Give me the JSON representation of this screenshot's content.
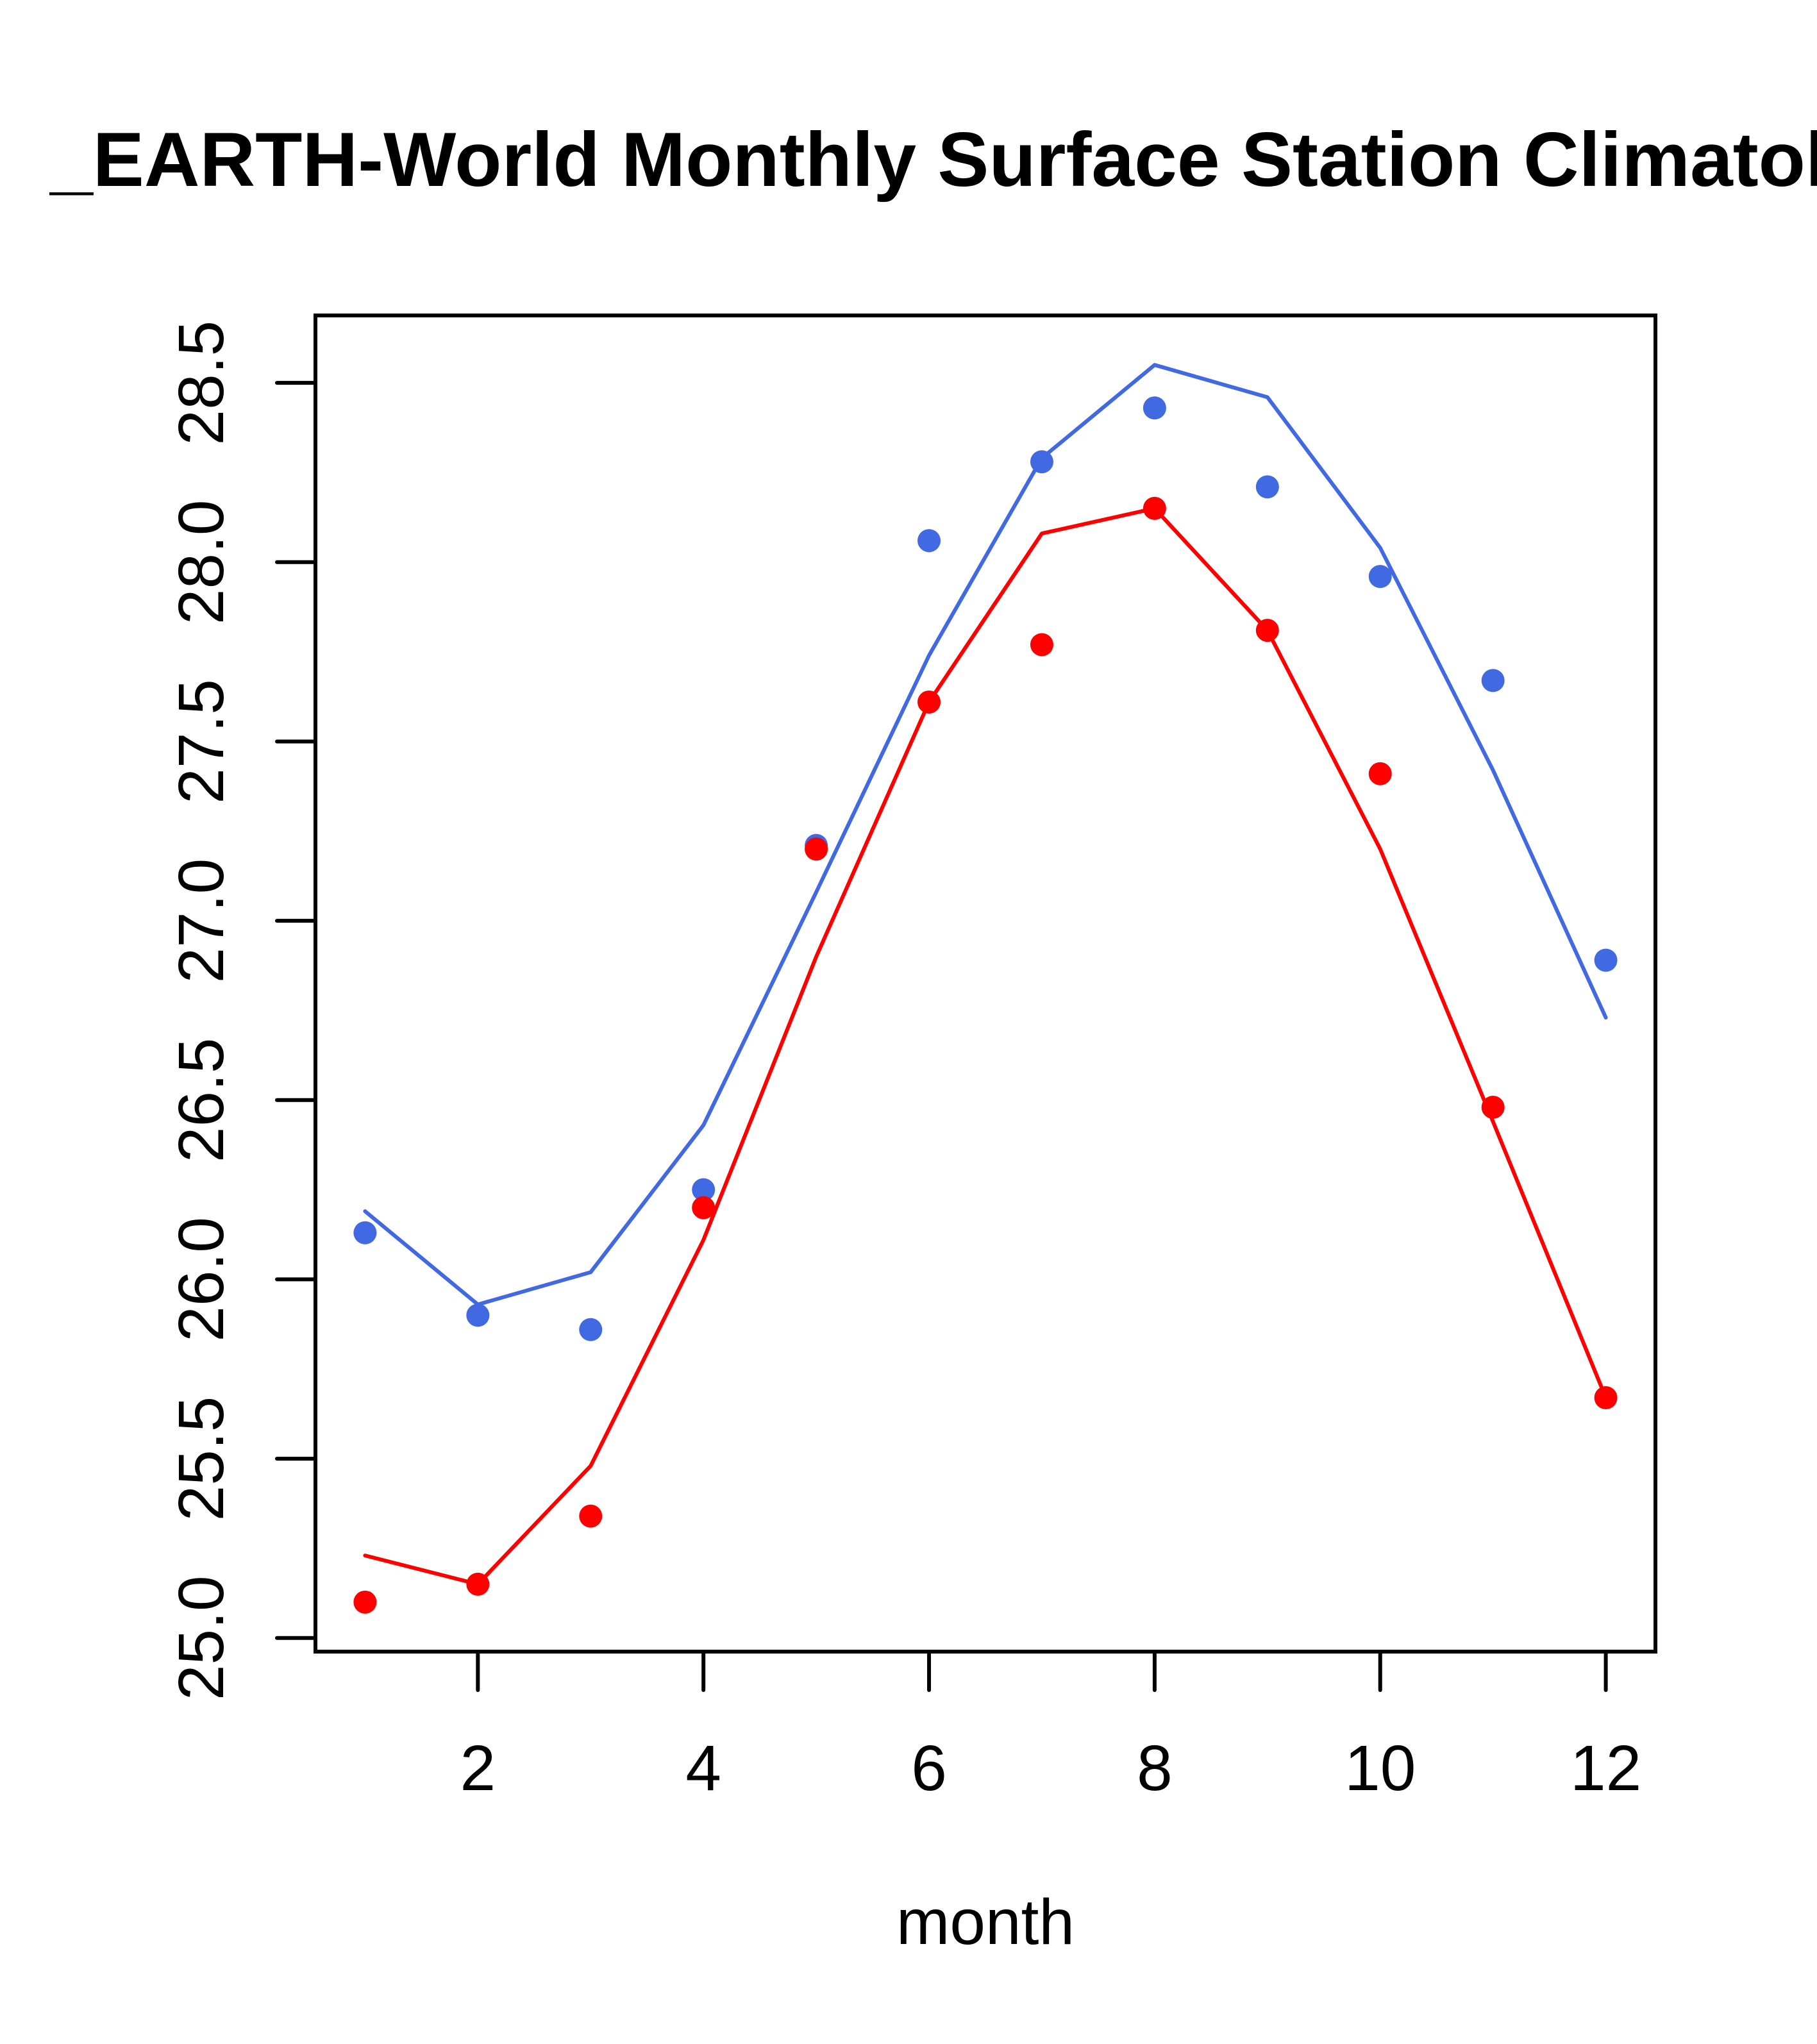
{
  "chart_data": {
    "type": "line",
    "title": "_EARTH-World Monthly Surface Station Climatolog",
    "xlabel": "month",
    "ylabel": "",
    "x": [
      1,
      2,
      3,
      4,
      5,
      6,
      7,
      8,
      9,
      10,
      11,
      12
    ],
    "xlim": [
      0.56,
      12.44
    ],
    "ylim": [
      24.962,
      28.688
    ],
    "xticks": [
      2,
      4,
      6,
      8,
      10,
      12
    ],
    "xtick_labels": [
      "2",
      "4",
      "6",
      "8",
      "10",
      "12"
    ],
    "yticks": [
      25.0,
      25.5,
      26.0,
      26.5,
      27.0,
      27.5,
      28.0,
      28.5
    ],
    "ytick_labels": [
      "25.0",
      "25.5",
      "26.0",
      "26.5",
      "27.0",
      "27.5",
      "28.0",
      "28.5"
    ],
    "grid": false,
    "legend": null,
    "series": [
      {
        "name": "blue-points",
        "kind": "points",
        "color": "#4169e1",
        "values": [
          26.13,
          25.9,
          25.86,
          26.25,
          27.21,
          28.06,
          28.28,
          28.43,
          28.21,
          27.96,
          27.67,
          26.89
        ]
      },
      {
        "name": "blue-line",
        "kind": "line",
        "color": "#4169e1",
        "values": [
          26.19,
          25.93,
          26.02,
          26.43,
          27.08,
          27.74,
          28.29,
          28.55,
          28.46,
          28.04,
          27.42,
          26.73
        ]
      },
      {
        "name": "red-points",
        "kind": "points",
        "color": "#ff0000",
        "values": [
          25.1,
          25.15,
          25.34,
          26.2,
          27.2,
          27.61,
          27.77,
          28.15,
          27.81,
          27.41,
          26.48,
          25.67
        ]
      },
      {
        "name": "red-line",
        "kind": "line",
        "color": "#ff0000",
        "values": [
          25.23,
          25.15,
          25.48,
          26.11,
          26.9,
          27.61,
          28.08,
          28.15,
          27.81,
          27.2,
          26.44,
          25.67
        ]
      }
    ]
  }
}
